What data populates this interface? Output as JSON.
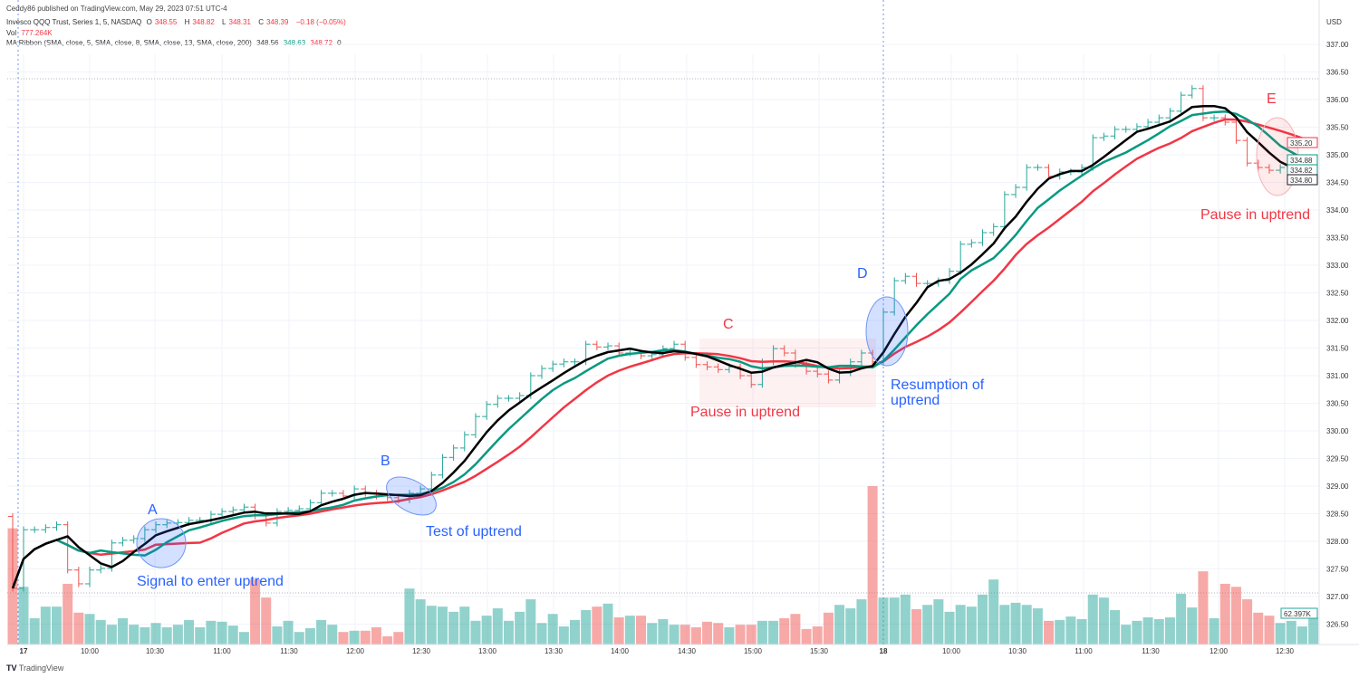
{
  "publish_line": "Ceddy86 published on TradingView.com, May 29, 2023 07:51 UTC-4",
  "legend": {
    "symbol": "Invesco QQQ Trust, Series 1, 5, NASDAQ",
    "o_label": "O",
    "o": "348.55",
    "h_label": "H",
    "h": "348.82",
    "l_label": "L",
    "l": "348.31",
    "c_label": "C",
    "c": "348.39",
    "change": "−0.18 (−0.05%)",
    "vol_label": "Vol",
    "vol": "777.264K",
    "ma_label": "MA Ribbon (SMA, close, 5, SMA, close, 8, SMA, close, 13, SMA, close, 200)",
    "ma_values": [
      "348.56",
      "348.63",
      "348.72",
      "0"
    ]
  },
  "colors": {
    "up": "#26a69a",
    "down": "#ef5350",
    "ma5": "#000000",
    "ma8": "#089981",
    "ma13": "#f23645",
    "annotation_blue": "#2962ff",
    "annotation_red": "#f23645"
  },
  "chart_data": {
    "type": "ohlc",
    "currency": "USD",
    "ylim": [
      326.3,
      337.2
    ],
    "y_ticks": [
      "337.00",
      "336.50",
      "336.00",
      "335.50",
      "335.00",
      "334.50",
      "334.00",
      "333.50",
      "333.00",
      "332.50",
      "332.00",
      "331.50",
      "331.00",
      "330.50",
      "330.00",
      "329.50",
      "329.00",
      "328.50",
      "328.00",
      "327.50",
      "327.00",
      "326.50"
    ],
    "x_ticks": [
      "17",
      "10:00",
      "10:30",
      "11:00",
      "11:30",
      "12:00",
      "12:30",
      "13:00",
      "13:30",
      "14:00",
      "14:30",
      "15:00",
      "15:30",
      "18",
      "10:00",
      "10:30",
      "11:00",
      "11:30",
      "12:00",
      "12:30"
    ],
    "bar_interval": "5m",
    "prior_bar": {
      "open": 328.45,
      "close": 327.15,
      "volume": 270
    },
    "closes": [
      328.21,
      328.21,
      328.25,
      328.3,
      327.48,
      327.23,
      327.48,
      327.51,
      327.97,
      328.02,
      328.05,
      328.21,
      328.3,
      328.33,
      328.34,
      328.38,
      328.38,
      328.49,
      328.54,
      328.57,
      328.62,
      328.46,
      328.33,
      328.54,
      328.56,
      328.59,
      328.7,
      328.87,
      328.87,
      328.82,
      328.95,
      328.87,
      328.82,
      328.79,
      328.75,
      328.87,
      328.95,
      329.2,
      329.52,
      329.69,
      329.93,
      330.26,
      330.48,
      330.59,
      330.59,
      330.64,
      331.0,
      331.13,
      331.21,
      331.25,
      331.25,
      331.57,
      331.52,
      331.54,
      331.41,
      331.41,
      331.36,
      331.38,
      331.49,
      331.57,
      331.33,
      331.2,
      331.16,
      331.11,
      331.16,
      331.0,
      330.84,
      331.25,
      331.49,
      331.41,
      331.2,
      331.08,
      331.03,
      330.92,
      331.05,
      331.25,
      331.41,
      331.25,
      332.15,
      332.72,
      332.8,
      332.67,
      332.67,
      332.72,
      332.89,
      333.38,
      333.41,
      333.59,
      333.7,
      334.28,
      334.41,
      334.77,
      334.77,
      334.61,
      334.69,
      334.69,
      334.77,
      335.31,
      335.34,
      335.46,
      335.46,
      335.51,
      335.59,
      335.67,
      335.79,
      336.08,
      336.2,
      335.67,
      335.67,
      335.59,
      335.26,
      334.85,
      334.77,
      334.72,
      334.77,
      334.77,
      334.77,
      334.8
    ],
    "volumes_k": [
      134,
      61,
      88,
      88,
      141,
      74,
      71,
      57,
      46,
      61,
      46,
      40,
      50,
      40,
      46,
      57,
      40,
      55,
      53,
      44,
      29,
      151,
      109,
      42,
      55,
      29,
      38,
      57,
      46,
      29,
      32,
      32,
      40,
      19,
      29,
      130,
      105,
      90,
      88,
      76,
      88,
      55,
      67,
      84,
      55,
      76,
      105,
      50,
      71,
      42,
      57,
      80,
      88,
      95,
      63,
      67,
      67,
      50,
      59,
      46,
      46,
      40,
      53,
      50,
      40,
      46,
      46,
      55,
      55,
      61,
      71,
      36,
      42,
      74,
      92,
      84,
      105,
      368,
      109,
      109,
      116,
      82,
      92,
      105,
      76,
      92,
      88,
      116,
      151,
      92,
      97,
      92,
      84,
      55,
      57,
      65,
      59,
      116,
      109,
      80,
      46,
      55,
      63,
      59,
      63,
      118,
      86,
      170,
      61,
      141,
      134,
      105,
      74,
      67,
      50,
      55,
      42,
      62.397
    ],
    "last_volume_label": "62.397K",
    "ma_periods": [
      5,
      8,
      13
    ],
    "price_labels": [
      {
        "text": "335.20",
        "series": "ma13"
      },
      {
        "text": "334.88",
        "series": "ma8"
      },
      {
        "text": "334.82",
        "series": "ma8"
      },
      {
        "text": "334.80",
        "series": "price"
      }
    ],
    "annotations": {
      "a": "A",
      "a_text": "Signal to enter uptrend",
      "b": "B",
      "b_text": "Test of uptrend",
      "c": "C",
      "c_text": "Pause in uptrend",
      "d": "D",
      "d_text_1": "Resumption of",
      "d_text_2": "uptrend",
      "e": "E",
      "e_text": "Pause in uptrend"
    }
  },
  "footer": {
    "brand": "TradingView"
  }
}
